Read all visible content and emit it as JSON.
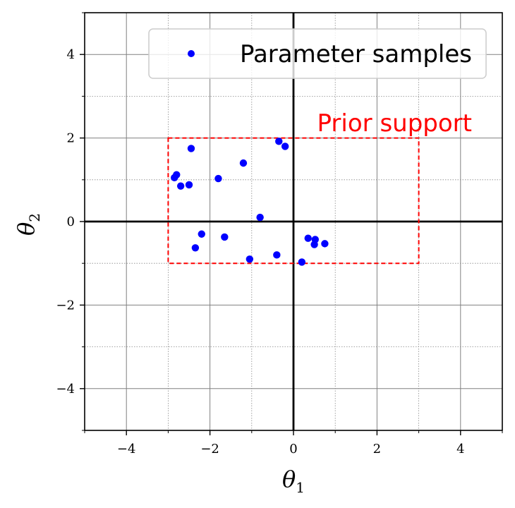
{
  "chart_data": {
    "type": "scatter",
    "title": "",
    "xlabel_base": "θ",
    "xlabel_sub": "1",
    "ylabel_base": "θ",
    "ylabel_sub": "2",
    "xlim": [
      -5,
      5
    ],
    "ylim": [
      -5,
      5
    ],
    "x_major_ticks": [
      -4,
      -2,
      0,
      2,
      4
    ],
    "y_major_ticks": [
      -4,
      -2,
      0,
      2,
      4
    ],
    "x_tick_labels": [
      "−4",
      "−2",
      "0",
      "2",
      "4"
    ],
    "y_tick_labels": [
      "−4",
      "−2",
      "0",
      "2",
      "4"
    ],
    "x_minor_ticks": [
      -5,
      -3,
      -1,
      1,
      3,
      5
    ],
    "y_minor_ticks": [
      -5,
      -3,
      -1,
      1,
      3,
      5
    ],
    "grid": true,
    "legend_position": "top-right",
    "series": [
      {
        "name": "Parameter samples",
        "color": "#0000ff",
        "points": [
          {
            "x": -2.45,
            "y": 1.75
          },
          {
            "x": -2.8,
            "y": 1.12
          },
          {
            "x": -2.85,
            "y": 1.05
          },
          {
            "x": -2.7,
            "y": 0.85
          },
          {
            "x": -2.5,
            "y": 0.88
          },
          {
            "x": -1.8,
            "y": 1.03
          },
          {
            "x": -1.2,
            "y": 1.4
          },
          {
            "x": -0.35,
            "y": 1.92
          },
          {
            "x": -0.2,
            "y": 1.8
          },
          {
            "x": -0.8,
            "y": 0.1
          },
          {
            "x": -2.2,
            "y": -0.3
          },
          {
            "x": -2.35,
            "y": -0.63
          },
          {
            "x": -1.65,
            "y": -0.37
          },
          {
            "x": -1.05,
            "y": -0.9
          },
          {
            "x": -0.4,
            "y": -0.8
          },
          {
            "x": 0.2,
            "y": -0.97
          },
          {
            "x": 0.35,
            "y": -0.4
          },
          {
            "x": 0.52,
            "y": -0.43
          },
          {
            "x": 0.5,
            "y": -0.55
          },
          {
            "x": 0.75,
            "y": -0.53
          }
        ]
      }
    ],
    "prior_support": {
      "label": "Prior support",
      "color": "#ff0000",
      "x_range": [
        -3,
        3
      ],
      "y_range": [
        -1,
        2
      ]
    }
  }
}
